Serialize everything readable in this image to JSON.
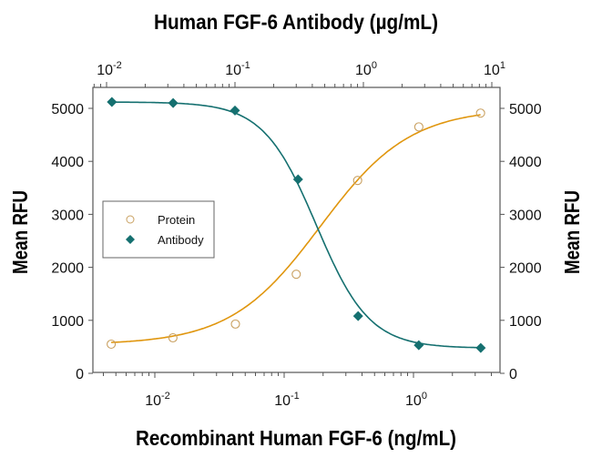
{
  "chart_data": {
    "type": "line",
    "title": "Human FGF-6 Antibody (µg/mL)",
    "xlabel": "Recombinant Human FGF-6 (ng/mL)",
    "x2label": "Human FGF-6 Antibody (µg/mL)",
    "ylabel": "Mean RFU",
    "y2label": "Mean RFU",
    "xscale": "log",
    "xlim": [
      0.0035,
      5
    ],
    "x2lim": [
      0.0075,
      11
    ],
    "ylim": [
      0,
      5300
    ],
    "yticks": [
      0,
      1000,
      2000,
      3000,
      4000,
      5000
    ],
    "xtick_labels": [
      {
        "base": "10",
        "exp": "-2"
      },
      {
        "base": "10",
        "exp": "-1"
      },
      {
        "base": "10",
        "exp": "0"
      }
    ],
    "x2tick_labels": [
      {
        "base": "10",
        "exp": "-2"
      },
      {
        "base": "10",
        "exp": "-1"
      },
      {
        "base": "10",
        "exp": "0"
      },
      {
        "base": "10",
        "exp": "1"
      }
    ],
    "grid": false,
    "legend_position": "center-left",
    "series": [
      {
        "name": "Protein",
        "axis": "bottom",
        "marker": "open-circle",
        "color": "#e0960e",
        "marker_color": "#c9a060",
        "x": [
          0.0046,
          0.0138,
          0.042,
          0.124,
          0.37,
          1.1,
          3.3
        ],
        "values": [
          550,
          670,
          930,
          1870,
          3640,
          4650,
          4910
        ]
      },
      {
        "name": "Antibody",
        "axis": "top",
        "marker": "filled-diamond",
        "color": "#157070",
        "marker_color": "#157070",
        "x": [
          0.011,
          0.033,
          0.1,
          0.31,
          0.91,
          2.7,
          8.2
        ],
        "values": [
          5120,
          5100,
          4960,
          3660,
          1080,
          530,
          480
        ]
      }
    ]
  },
  "legend": {
    "items": [
      {
        "label": "Protein"
      },
      {
        "label": "Antibody"
      }
    ]
  },
  "labels": {
    "top_title": "Human FGF-6 Antibody (µg/mL)",
    "bottom_title": "Recombinant Human FGF-6 (ng/mL)",
    "left_ylabel": "Mean RFU",
    "right_ylabel": "Mean RFU"
  }
}
